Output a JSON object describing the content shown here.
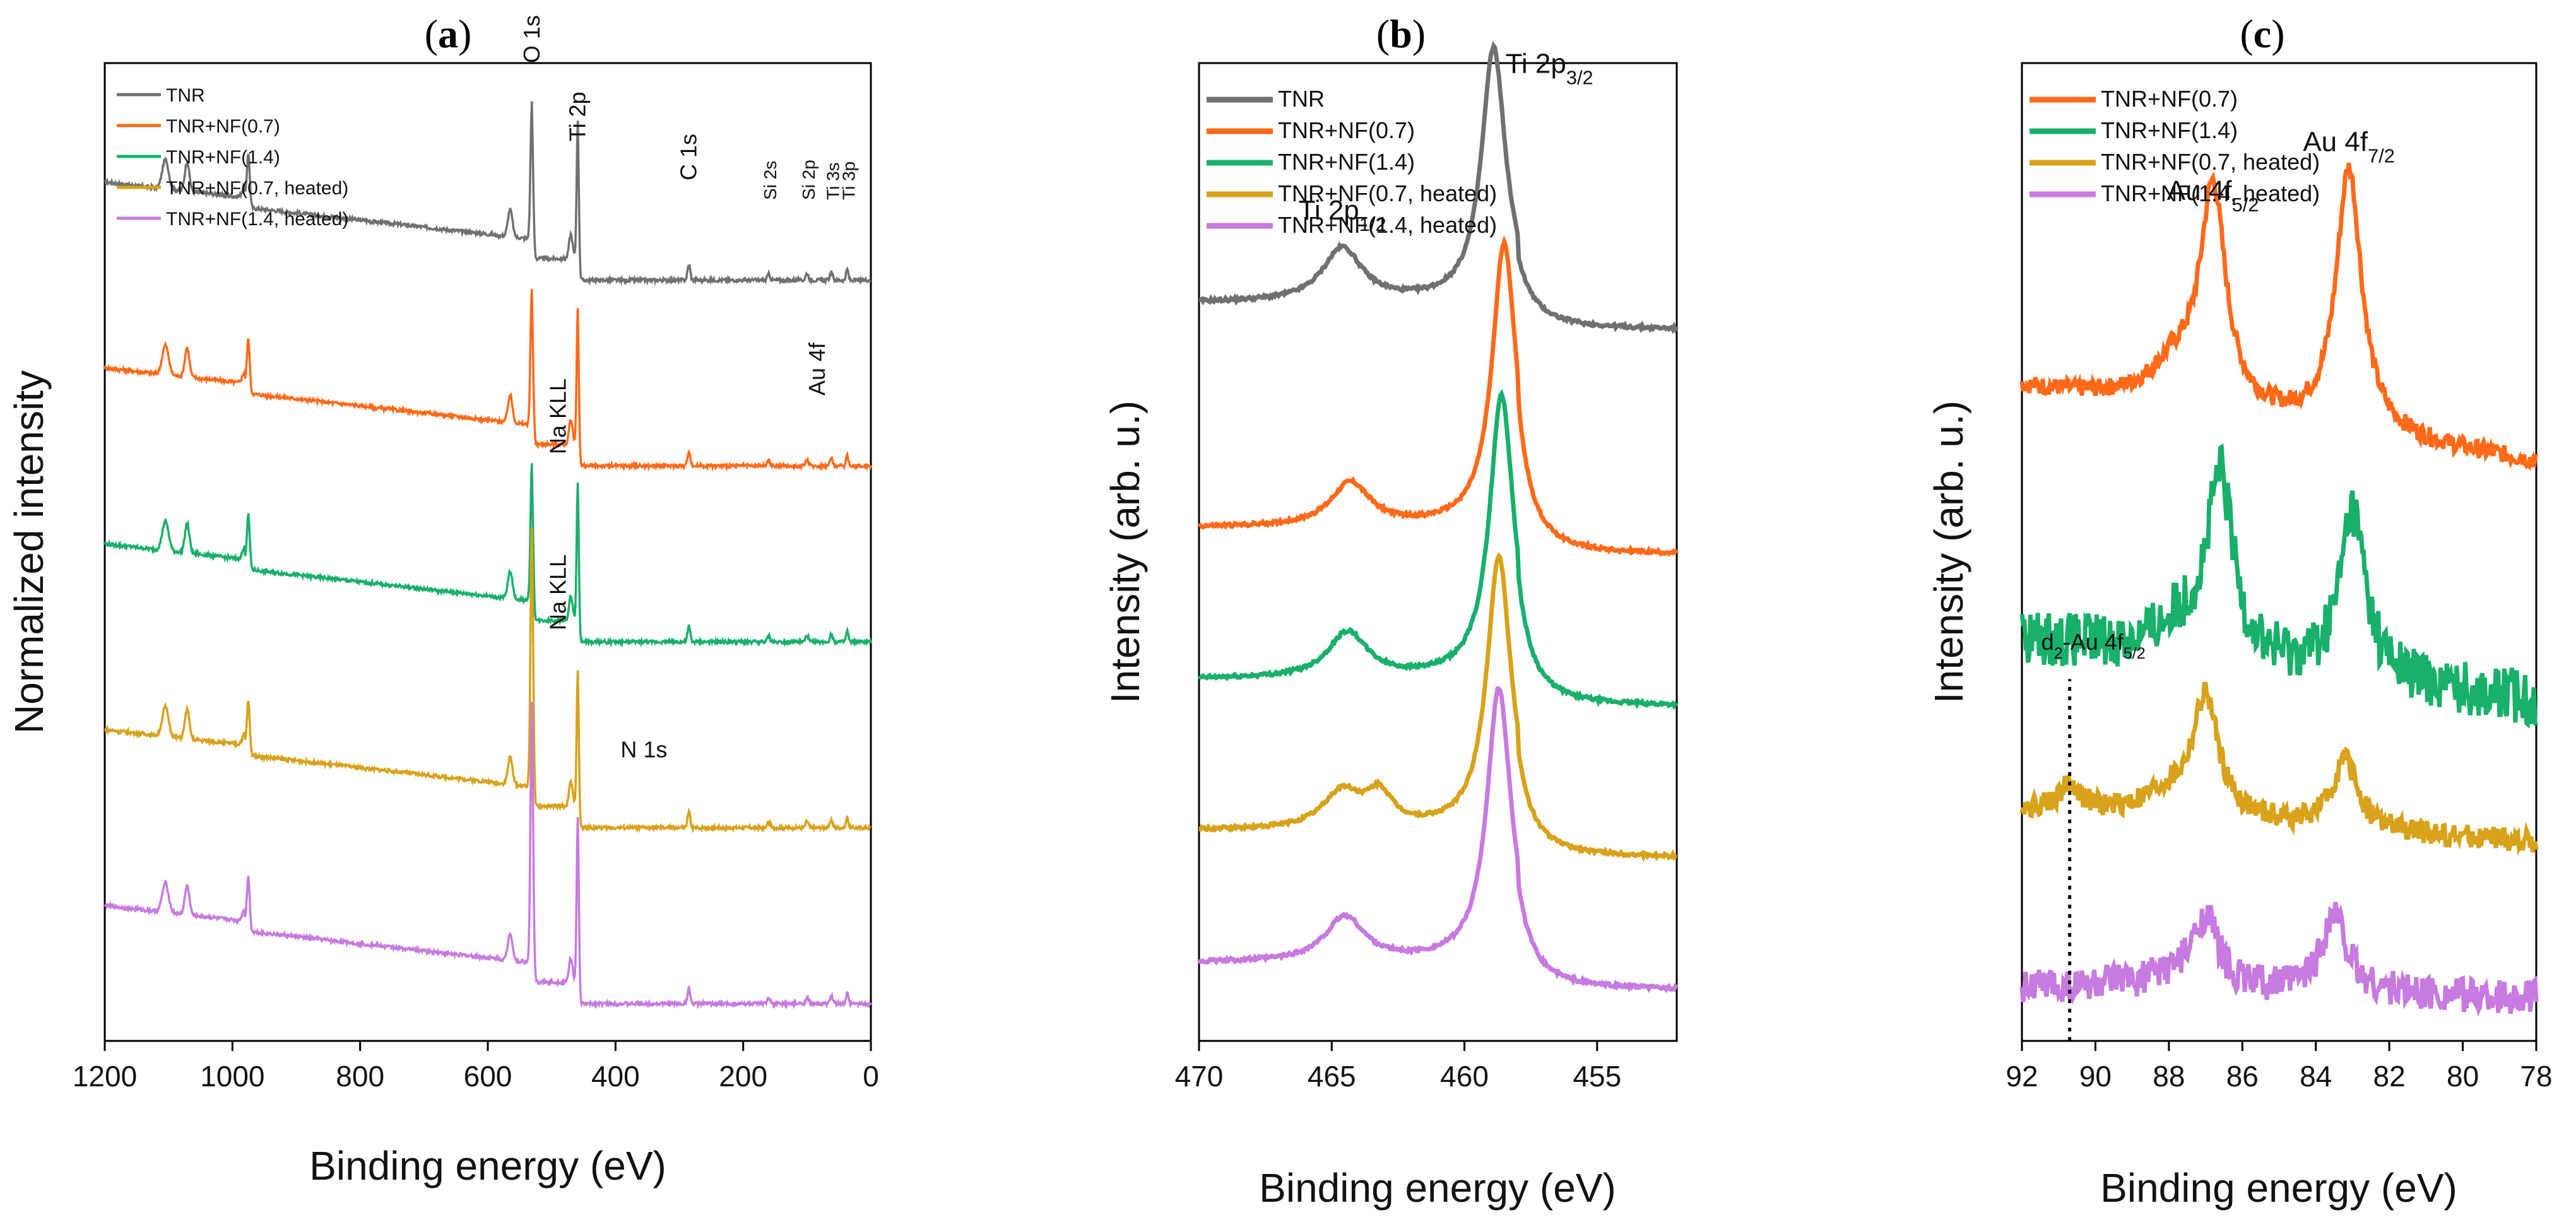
{
  "figure": {
    "panels": [
      {
        "id": "a",
        "label": "(a)",
        "bold": "a"
      },
      {
        "id": "b",
        "label": "(b)",
        "bold": "b"
      },
      {
        "id": "c",
        "label": "(c)",
        "bold": "c"
      }
    ]
  },
  "chart_data": [
    {
      "id": "a",
      "type": "line",
      "title": "(a)",
      "xlabel": "Binding energy (eV)",
      "ylabel": "Normalized intensity",
      "xlim": [
        1200,
        0
      ],
      "ylim": [
        0,
        100
      ],
      "xticks": [
        1200,
        1000,
        800,
        600,
        400,
        200,
        0
      ],
      "yticks": false,
      "legend": "top-left",
      "colors": [
        "#707070",
        "#ff6a1a",
        "#18b06a",
        "#d8a21a",
        "#c77ae0"
      ],
      "series": [
        {
          "name": "TNR",
          "offset": 82
        },
        {
          "name": "TNR+NF(0.7)",
          "offset": 63
        },
        {
          "name": "TNR+NF(1.4)",
          "offset": 45
        },
        {
          "name": "TNR+NF(0.7, heated)",
          "offset": 26
        },
        {
          "name": "TNR+NF(1.4, heated)",
          "offset": 8
        }
      ],
      "peaks_a": [
        {
          "x": 1105,
          "h": 3.0,
          "w": 7
        },
        {
          "x": 1071,
          "h": 3.0,
          "w": 5
        },
        {
          "x": 980,
          "h": 1.2,
          "w": 6
        },
        {
          "x": 975,
          "h": 5.0,
          "w": 3
        },
        {
          "x": 565,
          "h": 2.8,
          "w": 5
        },
        {
          "x": 531,
          "h": 14.0,
          "w": 3
        },
        {
          "x": 470,
          "h": 2.5,
          "w": 4
        },
        {
          "x": 459,
          "h": 14.0,
          "w": 2.5
        },
        {
          "x": 285,
          "h": 1.6,
          "w": 3
        },
        {
          "x": 160,
          "h": 0.6,
          "w": 3
        },
        {
          "x": 100,
          "h": 0.7,
          "w": 3
        },
        {
          "x": 62,
          "h": 0.8,
          "w": 3
        },
        {
          "x": 37,
          "h": 1.1,
          "w": 2.5
        }
      ],
      "annotations": [
        {
          "text": "O 1s",
          "x": 531,
          "dy": 18,
          "rotate": true
        },
        {
          "text": "Ti 2p",
          "x": 459,
          "dy": 10,
          "rotate": true
        },
        {
          "text": "C 1s",
          "x": 285,
          "dy": 6,
          "rotate": true
        },
        {
          "text": "Si 2s",
          "x": 160,
          "dy": 4,
          "rotate": true,
          "small": true
        },
        {
          "text": "Si 2p",
          "x": 100,
          "dy": 4,
          "rotate": true,
          "small": true
        },
        {
          "text": "Ti 3s",
          "x": 62,
          "dy": 4,
          "rotate": true,
          "small": true
        },
        {
          "text": "Ti 3p",
          "x": 37,
          "dy": 4,
          "rotate": true,
          "small": true
        },
        {
          "text": "Na KLL",
          "x": 490,
          "dy": -3,
          "series": 1,
          "rotate": true
        },
        {
          "text": "Au 4f",
          "x": 84,
          "dy": 3,
          "series": 1,
          "rotate": true
        },
        {
          "text": "Na KLL",
          "x": 490,
          "dy": -3,
          "series": 2,
          "rotate": true
        },
        {
          "text": "N 1s",
          "x": 400,
          "dy": 3,
          "series": 3,
          "rotate": false
        }
      ]
    },
    {
      "id": "b",
      "type": "line",
      "title": "(b)",
      "xlabel": "Binding energy (eV)",
      "ylabel": "Intensity (arb. u.)",
      "xlim": [
        470,
        452
      ],
      "ylim": [
        0,
        100
      ],
      "xticks": [
        470,
        465,
        460,
        455
      ],
      "yticks": false,
      "legend": "top-left",
      "colors": [
        "#707070",
        "#ff6a1a",
        "#18b06a",
        "#d8a21a",
        "#c77ae0"
      ],
      "series": [
        {
          "name": "TNR",
          "base": 75.5,
          "p12": 464.6,
          "p32": 458.9,
          "h32": 26,
          "h12": 5.5
        },
        {
          "name": "TNR+NF(0.7)",
          "base": 52.5,
          "p12": 464.3,
          "p32": 458.5,
          "h32": 29,
          "h12": 4.5
        },
        {
          "name": "TNR+NF(1.4)",
          "base": 37.0,
          "p12": 464.4,
          "p32": 458.6,
          "h32": 29,
          "h12": 4.7
        },
        {
          "name": "TNR+NF(0.7, heated)",
          "base": 21.5,
          "p12": 464.6,
          "p32": 458.7,
          "h32": 28,
          "h12": 3.8
        },
        {
          "name": "TNR+NF(1.4, heated)",
          "base": 8.0,
          "p12": 464.5,
          "p32": 458.7,
          "h32": 28,
          "h12": 4.6
        }
      ],
      "annotations": [
        {
          "text": "Ti 2p",
          "sub": "1/2",
          "x": 464.6,
          "y": 84
        },
        {
          "text": "Ti 2p",
          "sub": "3/2",
          "x": 456.8,
          "y": 99
        }
      ]
    },
    {
      "id": "c",
      "type": "line",
      "title": "(c)",
      "xlabel": "Binding energy (eV)",
      "ylabel": "Intensity (arb. u.)",
      "xlim": [
        92,
        78
      ],
      "ylim": [
        0,
        100
      ],
      "xticks": [
        92,
        90,
        88,
        86,
        84,
        82,
        80,
        78
      ],
      "yticks": false,
      "legend": "top-left",
      "colors": [
        "#ff6a1a",
        "#18b06a",
        "#d8a21a",
        "#c77ae0"
      ],
      "series": [
        {
          "name": "TNR+NF(0.7)",
          "base": 63,
          "slope": -0.55,
          "p1": 86.8,
          "h1": 22,
          "p2": 83.1,
          "h2": 27,
          "noise": 0.9
        },
        {
          "name": "TNR+NF(1.4)",
          "base": 38,
          "slope": -0.45,
          "p1": 86.6,
          "h1": 18,
          "p2": 83.0,
          "h2": 17,
          "noise": 2.8
        },
        {
          "name": "TNR+NF(0.7, heated)",
          "base": 22,
          "slope": -0.25,
          "p1": 87.0,
          "h1": 12,
          "p2": 83.2,
          "h2": 7,
          "p3": 90.7,
          "h3": 2.5,
          "noise": 1.2
        },
        {
          "name": "TNR+NF(1.4, heated)",
          "base": 5,
          "slope": -0.08,
          "p1": 87.0,
          "h1": 7,
          "p2": 83.5,
          "h2": 8,
          "noise": 1.8
        }
      ],
      "annotations": [
        {
          "text": "Au 4f",
          "sub": "5/2",
          "x": 86.8,
          "y": 86
        },
        {
          "text": "Au 4f",
          "sub": "7/2",
          "x": 83.1,
          "y": 91
        },
        {
          "text": "d",
          "dsub": "2",
          "mid": "-Au 4f",
          "sub": "5/2",
          "x": 90.7,
          "y": 40
        }
      ],
      "dotted_line": {
        "x": 90.7,
        "y_from": 0,
        "y_to": 37
      }
    }
  ]
}
